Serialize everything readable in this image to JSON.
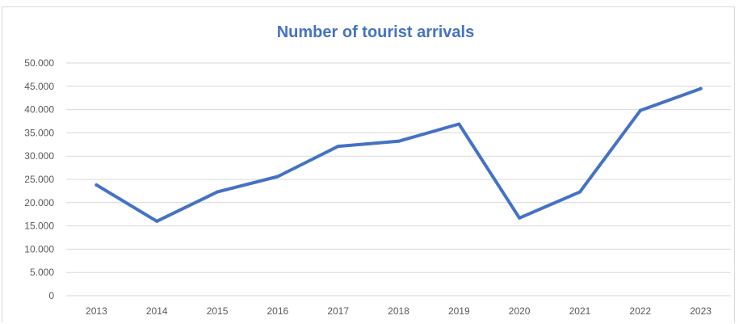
{
  "chart_data": {
    "type": "line",
    "title": "Number of tourist arrivals",
    "xlabel": "",
    "ylabel": "",
    "categories": [
      "2013",
      "2014",
      "2015",
      "2016",
      "2017",
      "2018",
      "2019",
      "2020",
      "2021",
      "2022",
      "2023"
    ],
    "series": [
      {
        "values": [
          23800,
          16000,
          22300,
          25600,
          32100,
          33200,
          36900,
          16700,
          22300,
          39800,
          44500
        ]
      }
    ],
    "ylim": [
      0,
      50000
    ],
    "y_ticks": [
      "0",
      "5.000",
      "10.000",
      "15.000",
      "20.000",
      "25.000",
      "30.000",
      "35.000",
      "40.000",
      "45.000",
      "50.000"
    ],
    "y_tick_values": [
      0,
      5000,
      10000,
      15000,
      20000,
      25000,
      30000,
      35000,
      40000,
      45000,
      50000
    ],
    "grid": true,
    "legend": "none",
    "colors": {
      "line": "#4472c4",
      "title": "#4472c4",
      "grid": "#d9d9d9",
      "tick_text": "#595959"
    }
  }
}
